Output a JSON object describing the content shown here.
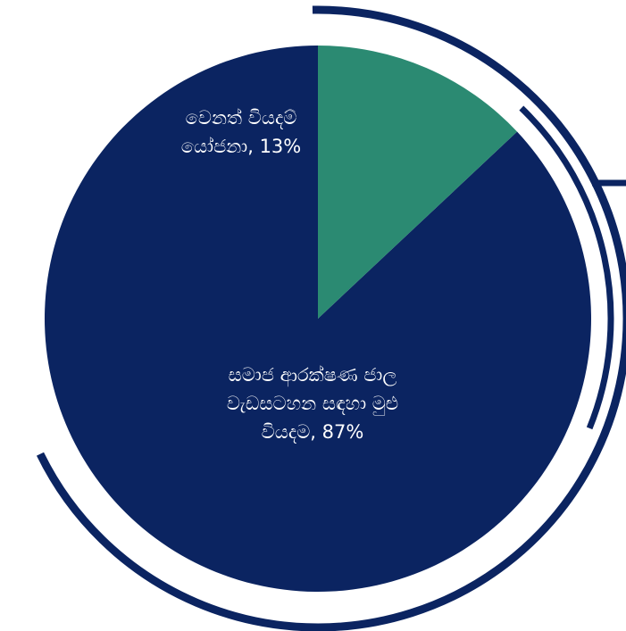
{
  "chart_data": {
    "type": "pie",
    "slices": [
      {
        "label_lines": [
          "සමාජ ආරක්ෂණ ජාල",
          "වැඩසටහන සඳහා මුළු",
          "වියදම, 87%"
        ],
        "value": 87,
        "color": "#0b2461"
      },
      {
        "label_lines": [
          "වෙනත් වියදම්",
          "යෝජනා, 13%"
        ],
        "value": 13,
        "color": "#2b8a72"
      }
    ],
    "start_angle": "12 o'clock",
    "direction": "counter-clockwise",
    "outline_color": "#0b2461"
  }
}
